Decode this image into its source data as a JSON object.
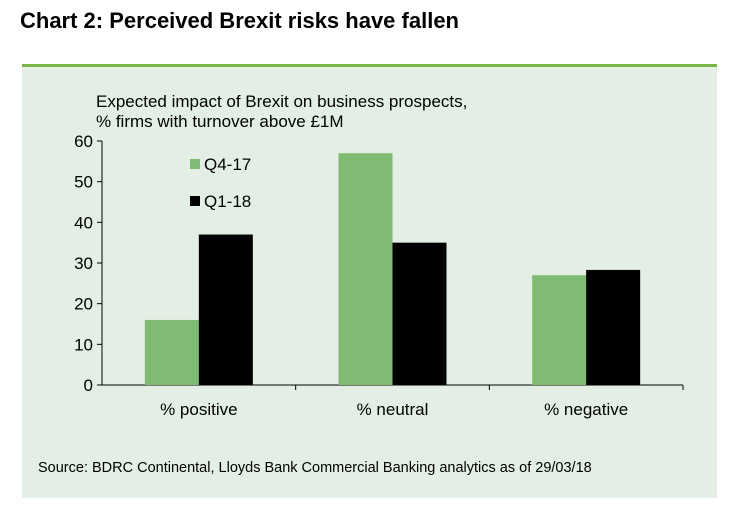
{
  "header": {
    "title": "Chart 2: Perceived Brexit risks have fallen"
  },
  "subtitle": {
    "line1": "Expected impact of Brexit on business prospects,",
    "line2": "% firms with turnover above £1M"
  },
  "source": "Source: BDRC Continental, Lloyds Bank Commercial Banking analytics as of 29/03/18",
  "colors": {
    "accent": "#7ab648",
    "panel_bg": "#e3efe5",
    "series_q4": "#80bb73",
    "series_q1": "#000000"
  },
  "chart_data": {
    "type": "bar",
    "title": "Expected impact of Brexit on business prospects, % firms with turnover above £1M",
    "categories": [
      "% positive",
      "% neutral",
      "% negative"
    ],
    "series": [
      {
        "name": "Q4-17",
        "color": "#80bb73",
        "values": [
          16,
          57,
          27
        ]
      },
      {
        "name": "Q1-18",
        "color": "#000000",
        "values": [
          37,
          35,
          28.3
        ]
      }
    ],
    "yticks": [
      0,
      10,
      20,
      30,
      40,
      50,
      60
    ],
    "ylim": [
      0,
      60
    ],
    "xlabel": "",
    "ylabel": "",
    "grid": false,
    "legend_position": "top-left"
  }
}
